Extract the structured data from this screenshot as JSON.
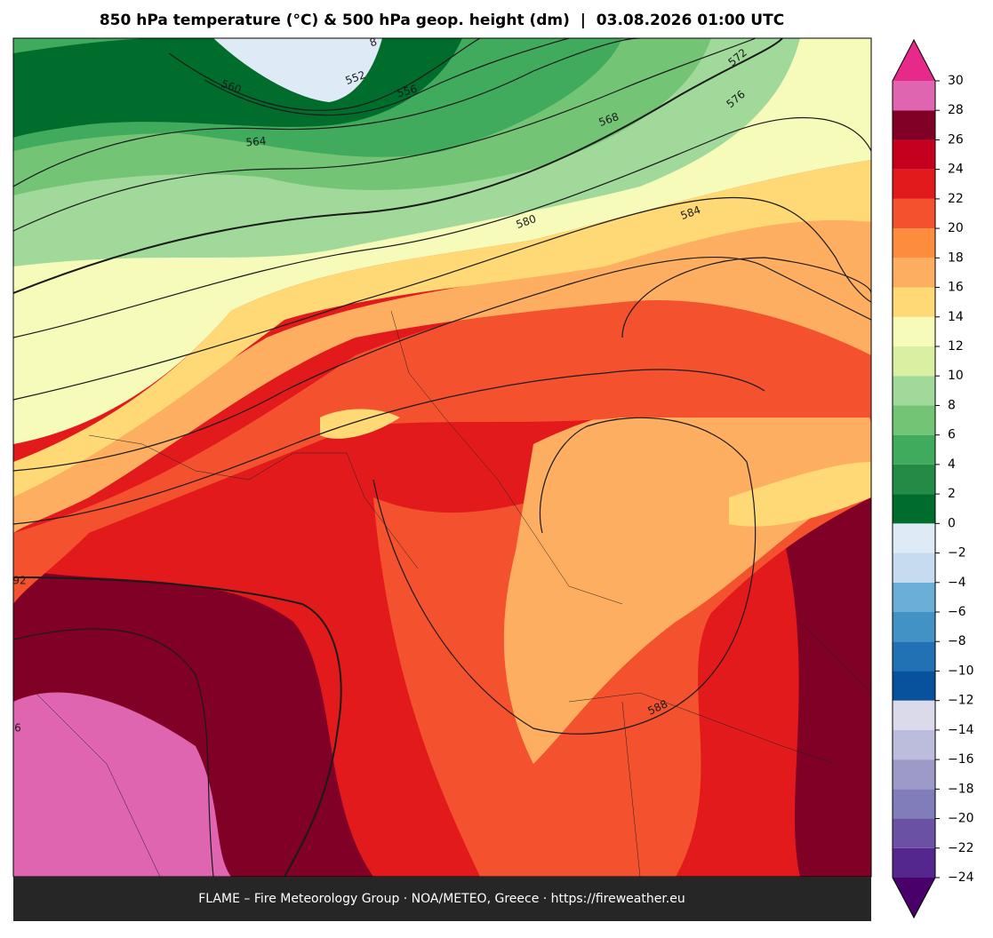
{
  "title": "850 hPa temperature (°C) & 500 hPa geop. height (dm)  |  03.08.2026 01:00 UTC",
  "footer": "FLAME – Fire Meteorology Group · NOA/METEO, Greece · https://fireweather.eu",
  "colorbar": {
    "lim": [
      -24,
      30
    ],
    "ticks": [
      {
        "value": -24,
        "label": "−24"
      },
      {
        "value": -22,
        "label": "−22"
      },
      {
        "value": -20,
        "label": "−20"
      },
      {
        "value": -18,
        "label": "−18"
      },
      {
        "value": -16,
        "label": "−16"
      },
      {
        "value": -14,
        "label": "−14"
      },
      {
        "value": -12,
        "label": "−12"
      },
      {
        "value": -10,
        "label": "−10"
      },
      {
        "value": -8,
        "label": "−8"
      },
      {
        "value": -6,
        "label": "−6"
      },
      {
        "value": -4,
        "label": "−4"
      },
      {
        "value": -2,
        "label": "−2"
      },
      0,
      2,
      4,
      6,
      8,
      10,
      12,
      14,
      16,
      18,
      20,
      22,
      24,
      26,
      28,
      30
    ],
    "colors": [
      "#54278f",
      "#6a51a3",
      "#807dba",
      "#9e9ac8",
      "#bcbddc",
      "#dadaeb",
      "#08519c",
      "#2171b5",
      "#4292c6",
      "#6baed6",
      "#c6dbef",
      "#deebf7",
      "#006d2c",
      "#238b45",
      "#41ab5d",
      "#74c476",
      "#a1d99b",
      "#d9f0a3",
      "#f7fbb9",
      "#fed976",
      "#fdae61",
      "#fd8d3c",
      "#f4512e",
      "#e31a1c",
      "#c4001e",
      "#800026",
      "#df65b0"
    ],
    "under_color": "#49006a",
    "over_color": "#e7298a"
  },
  "contour_labels": [
    "552",
    "556",
    "560",
    "564",
    "568",
    "572",
    "576",
    "580",
    "584",
    "588",
    "92",
    "6",
    "8"
  ]
}
